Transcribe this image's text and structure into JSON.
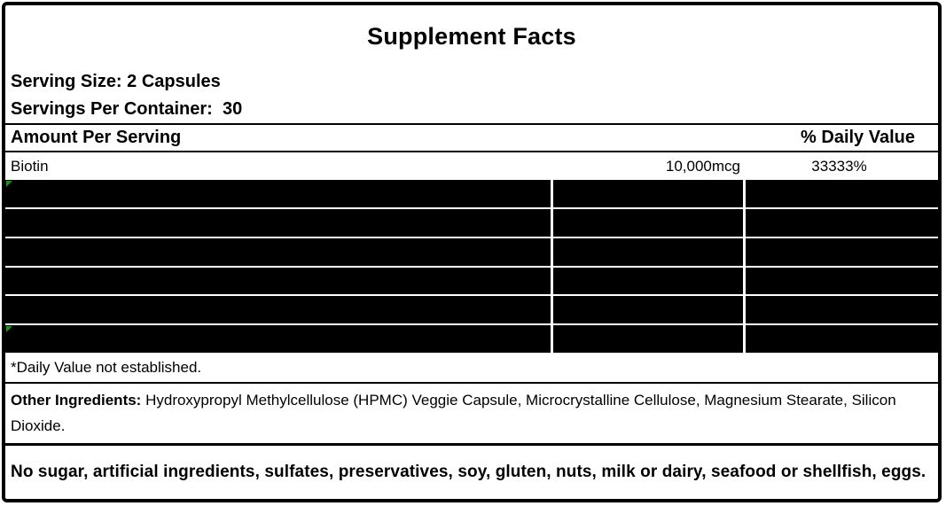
{
  "label": {
    "title": "Supplement Facts",
    "serving_size": "Serving Size: 2 Capsules",
    "servings_per_container": "Servings Per Container:  30",
    "header": {
      "amount_per_serving": "Amount Per Serving",
      "daily_value": "% Daily Value"
    },
    "nutrients": [
      {
        "name": "Biotin",
        "amount": "10,000mcg",
        "daily_value": "33333%"
      }
    ],
    "blank_grid": {
      "rows": 6,
      "columns": 3,
      "green_indicator_rows": [
        0,
        5
      ]
    },
    "footnote": "*Daily Value not established.",
    "other_ingredients_label": "Other Ingredients:",
    "other_ingredients_text": " Hydroxypropyl Methylcellulose (HPMC) Veggie Capsule, Microcrystalline Cellulose, Magnesium Stearate, Silicon Dioxide.",
    "allergen_statement": "No sugar, artificial ingredients, sulfates, preservatives, soy, gluten, nuts, milk or dairy, seafood or shellfish, eggs.",
    "colors": {
      "border": "#000000",
      "blank_cell_fill": "#000000",
      "gridline": "#ffffff",
      "error_indicator_green": "#0f9b0f",
      "text": "#000000",
      "background": "#ffffff"
    }
  }
}
